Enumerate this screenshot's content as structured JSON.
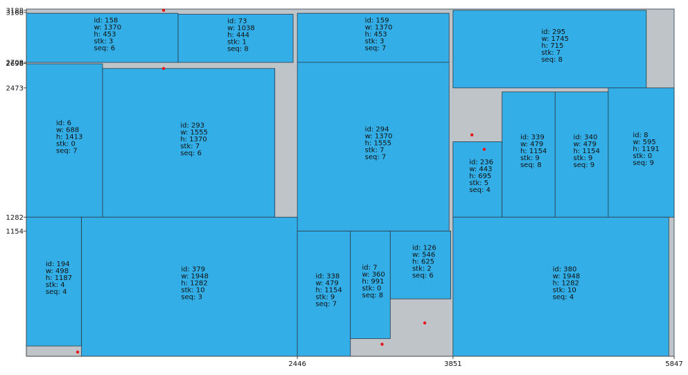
{
  "chart_data": {
    "type": "rect-packing",
    "x_range": [
      0,
      5847
    ],
    "y_range": [
      0,
      3200
    ],
    "colors": {
      "filled": "#33aee6",
      "empty": "#bfc4c8",
      "outline": "#2a3b4a",
      "marker": "#e8141a"
    },
    "x_ticks": [
      2446,
      3851,
      5847
    ],
    "y_ticks": [
      1154,
      1282,
      2473,
      2698,
      2708,
      3168,
      3188
    ],
    "blocks": [
      {
        "id": 158,
        "w": 1370,
        "h": 453,
        "stk": 3,
        "seq": 6,
        "x0": 0,
        "y0": 2708,
        "x1": 1370,
        "y1": 3161
      },
      {
        "id": 73,
        "w": 1038,
        "h": 444,
        "stk": 1,
        "seq": 8,
        "x0": 1370,
        "y0": 2708,
        "x1": 2408,
        "y1": 3152
      },
      {
        "id": 159,
        "w": 1370,
        "h": 453,
        "stk": 3,
        "seq": 7,
        "x0": 2446,
        "y0": 2708,
        "x1": 3816,
        "y1": 3161
      },
      {
        "id": 295,
        "w": 1745,
        "h": 715,
        "stk": 7,
        "seq": 8,
        "x0": 3851,
        "y0": 2473,
        "x1": 5596,
        "y1": 3188
      },
      {
        "id": 6,
        "w": 688,
        "h": 1413,
        "stk": 0,
        "seq": 7,
        "x0": 0,
        "y0": 1282,
        "x1": 688,
        "y1": 2695
      },
      {
        "id": 293,
        "w": 1555,
        "h": 1370,
        "stk": 7,
        "seq": 6,
        "x0": 688,
        "y0": 1282,
        "x1": 2243,
        "y1": 2652
      },
      {
        "id": 294,
        "w": 1370,
        "h": 1555,
        "stk": 7,
        "seq": 7,
        "x0": 2446,
        "y0": 1154,
        "x1": 3816,
        "y1": 2709
      },
      {
        "id": 236,
        "w": 443,
        "h": 695,
        "stk": 5,
        "seq": 4,
        "x0": 3851,
        "y0": 1282,
        "x1": 4294,
        "y1": 1977
      },
      {
        "id": 339,
        "w": 479,
        "h": 1154,
        "stk": 9,
        "seq": 8,
        "x0": 4294,
        "y0": 1282,
        "x1": 4773,
        "y1": 2436
      },
      {
        "id": 340,
        "w": 479,
        "h": 1154,
        "stk": 9,
        "seq": 9,
        "x0": 4773,
        "y0": 1282,
        "x1": 5252,
        "y1": 2436
      },
      {
        "id": 8,
        "w": 595,
        "h": 1191,
        "stk": 0,
        "seq": 9,
        "x0": 5252,
        "y0": 1282,
        "x1": 5847,
        "y1": 2473
      },
      {
        "id": 194,
        "w": 498,
        "h": 1187,
        "stk": 4,
        "seq": 4,
        "x0": 0,
        "y0": 95,
        "x1": 498,
        "y1": 1282
      },
      {
        "id": 379,
        "w": 1948,
        "h": 1282,
        "stk": 10,
        "seq": 3,
        "x0": 498,
        "y0": 0,
        "x1": 2446,
        "y1": 1282
      },
      {
        "id": 338,
        "w": 479,
        "h": 1154,
        "stk": 9,
        "seq": 7,
        "x0": 2446,
        "y0": 0,
        "x1": 2925,
        "y1": 1154
      },
      {
        "id": 7,
        "w": 360,
        "h": 991,
        "stk": 0,
        "seq": 8,
        "x0": 2925,
        "y0": 163,
        "x1": 3285,
        "y1": 1154
      },
      {
        "id": 126,
        "w": 546,
        "h": 625,
        "stk": 2,
        "seq": 6,
        "x0": 3285,
        "y0": 529,
        "x1": 3831,
        "y1": 1154
      },
      {
        "id": 380,
        "w": 1948,
        "h": 1282,
        "stk": 10,
        "seq": 4,
        "x0": 3851,
        "y0": 0,
        "x1": 5799,
        "y1": 1282
      }
    ],
    "markers": [
      [
        1239,
        3188
      ],
      [
        1239,
        2652
      ],
      [
        463,
        39
      ],
      [
        3211,
        111
      ],
      [
        3596,
        307
      ],
      [
        4022,
        2040
      ],
      [
        4133,
        1907
      ]
    ]
  }
}
